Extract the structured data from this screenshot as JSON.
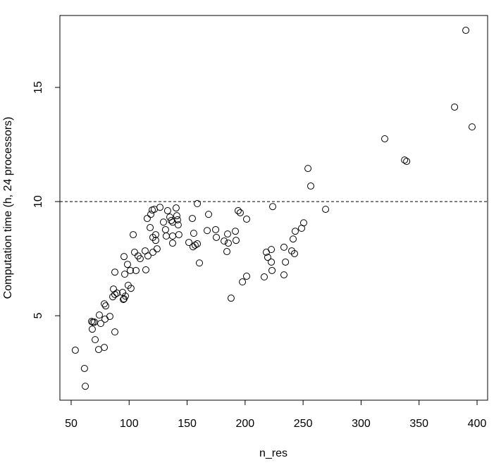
{
  "chart_data": {
    "type": "scatter",
    "x_label": "n_res",
    "y_label": "Computation time (h, 24 processors)",
    "xlim": [
      40.3,
      409.1
    ],
    "ylim": [
      1.3,
      18.15
    ],
    "xticks": [
      50,
      100,
      150,
      200,
      250,
      300,
      350,
      400
    ],
    "yticks": [
      5,
      10,
      15
    ],
    "hline": 10,
    "color": "#000000",
    "x": [
      53.6,
      61.5,
      62.2,
      67.6,
      68.8,
      70.1,
      68.2,
      70.7,
      73.7,
      78.6,
      75.5,
      74.3,
      79.2,
      83.4,
      78.6,
      79.8,
      85.9,
      87.7,
      86.5,
      89.5,
      87.7,
      87.7,
      94.4,
      95.0,
      95.6,
      96.8,
      95.6,
      96.2,
      98.6,
      101.0,
      99.2,
      101.6,
      103.5,
      104.7,
      105.9,
      107.7,
      109.5,
      113.8,
      114.4,
      115.6,
      116.2,
      118.1,
      118.7,
      119.9,
      121.7,
      120.5,
      120.5,
      122.9,
      122.9,
      124.1,
      126.6,
      129.6,
      131.4,
      132.0,
      133.2,
      135.1,
      136.3,
      137.5,
      137.5,
      137.5,
      140.5,
      141.1,
      141.7,
      142.3,
      142.9,
      151.5,
      154.5,
      155.7,
      155.1,
      156.9,
      158.8,
      158.8,
      160.6,
      167.3,
      168.5,
      174.6,
      175.2,
      181.9,
      184.3,
      184.9,
      185.5,
      187.9,
      191.6,
      192.2,
      194.0,
      195.8,
      197.7,
      201.3,
      201.3,
      216.5,
      218.3,
      219.5,
      222.6,
      222.6,
      223.2,
      223.8,
      233.5,
      233.5,
      234.8,
      240.2,
      241.4,
      242.6,
      243.2,
      248.7,
      250.5,
      254.2,
      256.6,
      269.4,
      320.4,
      337.5,
      339.3,
      380.6,
      390.3,
      395.7
    ],
    "y": [
      3.49,
      2.69,
      1.91,
      4.75,
      4.72,
      4.72,
      4.41,
      3.95,
      3.52,
      3.61,
      4.66,
      5.03,
      4.85,
      4.97,
      5.52,
      5.43,
      5.83,
      5.93,
      6.17,
      5.99,
      4.29,
      6.91,
      6.02,
      5.71,
      5.74,
      5.86,
      7.59,
      6.82,
      7.25,
      6.98,
      6.33,
      6.2,
      8.55,
      7.78,
      6.98,
      7.62,
      7.5,
      7.84,
      7.01,
      9.26,
      7.62,
      8.86,
      9.44,
      9.63,
      9.66,
      8.43,
      7.78,
      8.55,
      8.3,
      7.93,
      9.75,
      9.1,
      8.77,
      8.49,
      9.6,
      9.32,
      9.17,
      9.1,
      8.49,
      8.18,
      9.72,
      9.38,
      9.2,
      8.98,
      8.55,
      8.21,
      9.26,
      8.61,
      8.02,
      8.09,
      8.15,
      9.91,
      7.31,
      8.73,
      9.44,
      8.77,
      8.43,
      8.27,
      7.81,
      8.58,
      8.18,
      5.77,
      8.7,
      8.3,
      9.6,
      9.51,
      6.48,
      6.73,
      9.23,
      6.7,
      7.78,
      7.56,
      7.9,
      7.35,
      6.98,
      9.78,
      8.0,
      6.79,
      7.35,
      7.84,
      8.36,
      7.72,
      8.7,
      8.83,
      9.07,
      11.45,
      10.68,
      9.66,
      12.75,
      11.82,
      11.76,
      14.14,
      17.5,
      13.27
    ]
  }
}
